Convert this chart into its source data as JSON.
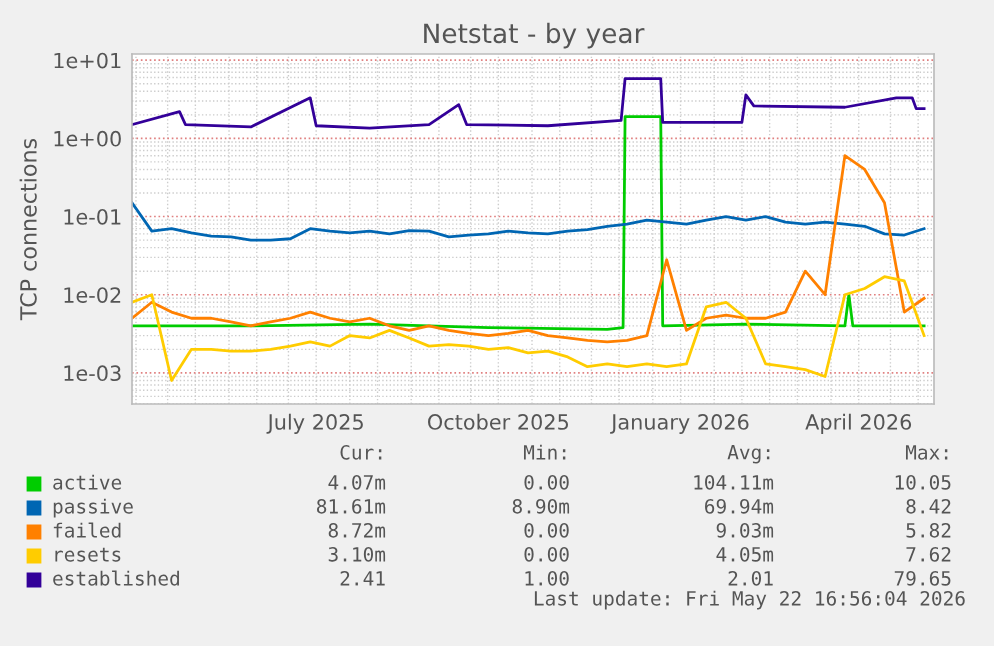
{
  "chart_data": {
    "type": "line",
    "title": "Netstat - by year",
    "ylabel": "TCP connections",
    "x": [
      "2025-04-13",
      "2025-04-23",
      "2025-05-03",
      "2025-05-13",
      "2025-05-23",
      "2025-06-02",
      "2025-06-12",
      "2025-06-22",
      "2025-07-02",
      "2025-07-12",
      "2025-07-22",
      "2025-08-01",
      "2025-08-11",
      "2025-08-21",
      "2025-08-31",
      "2025-09-10",
      "2025-09-20",
      "2025-09-30",
      "2025-10-10",
      "2025-10-20",
      "2025-10-30",
      "2025-11-09",
      "2025-11-19",
      "2025-11-29",
      "2025-12-09",
      "2025-12-19",
      "2025-12-29",
      "2026-01-08",
      "2026-01-18",
      "2026-01-28",
      "2026-02-07",
      "2026-02-17",
      "2026-02-27",
      "2026-03-09",
      "2026-03-19",
      "2026-03-29",
      "2026-04-08",
      "2026-04-18",
      "2026-04-28",
      "2026-05-08",
      "2026-05-18"
    ],
    "series": [
      {
        "name": "active",
        "color": "#00cc00",
        "x": [
          "2025-04-13",
          "2025-06-12",
          "2025-08-11",
          "2025-10-10",
          "2025-12-09",
          "2025-12-17",
          "2025-12-18",
          "2026-01-05",
          "2026-01-06",
          "2026-02-17",
          "2026-04-08",
          "2026-04-10",
          "2026-04-12",
          "2026-05-18"
        ],
        "values": [
          0.004,
          0.004,
          0.0042,
          0.0038,
          0.0036,
          0.0038,
          1.9,
          1.9,
          0.004,
          0.0042,
          0.004,
          0.01,
          0.004,
          0.004
        ]
      },
      {
        "name": "passive",
        "color": "#0066b3",
        "values": [
          0.15,
          0.065,
          0.07,
          0.062,
          0.056,
          0.055,
          0.05,
          0.05,
          0.052,
          0.07,
          0.065,
          0.062,
          0.065,
          0.06,
          0.066,
          0.065,
          0.055,
          0.058,
          0.06,
          0.065,
          0.062,
          0.06,
          0.065,
          0.068,
          0.075,
          0.08,
          0.09,
          0.085,
          0.08,
          0.09,
          0.1,
          0.09,
          0.1,
          0.085,
          0.08,
          0.085,
          0.08,
          0.075,
          0.06,
          0.058,
          0.07
        ]
      },
      {
        "name": "failed",
        "color": "#ff8000",
        "values": [
          0.005,
          0.008,
          0.006,
          0.005,
          0.005,
          0.0045,
          0.004,
          0.0045,
          0.005,
          0.006,
          0.005,
          0.0045,
          0.005,
          0.004,
          0.0035,
          0.004,
          0.0035,
          0.0032,
          0.003,
          0.0032,
          0.0035,
          0.003,
          0.0028,
          0.0026,
          0.0025,
          0.0026,
          0.003,
          0.028,
          0.0035,
          0.005,
          0.0055,
          0.005,
          0.005,
          0.006,
          0.02,
          0.01,
          0.6,
          0.4,
          0.15,
          0.006,
          0.009
        ]
      },
      {
        "name": "resets",
        "color": "#ffcc00",
        "values": [
          0.008,
          0.01,
          0.0008,
          0.002,
          0.002,
          0.0019,
          0.0019,
          0.002,
          0.0022,
          0.0025,
          0.0022,
          0.003,
          0.0028,
          0.0035,
          0.0028,
          0.0022,
          0.0023,
          0.0022,
          0.002,
          0.0021,
          0.0018,
          0.0019,
          0.0016,
          0.0012,
          0.0013,
          0.0012,
          0.0013,
          0.0012,
          0.0013,
          0.007,
          0.008,
          0.005,
          0.0013,
          0.0012,
          0.0011,
          0.0009,
          0.01,
          0.012,
          0.017,
          0.015,
          0.003
        ]
      },
      {
        "name": "established",
        "color": "#330099",
        "x": [
          "2025-04-13",
          "2025-05-07",
          "2025-05-10",
          "2025-06-12",
          "2025-07-12",
          "2025-07-15",
          "2025-08-11",
          "2025-09-10",
          "2025-09-25",
          "2025-09-29",
          "2025-11-09",
          "2025-12-16",
          "2025-12-18",
          "2026-01-05",
          "2026-01-06",
          "2026-02-15",
          "2026-02-17",
          "2026-02-21",
          "2026-04-08",
          "2026-05-04",
          "2026-05-12",
          "2026-05-14",
          "2026-05-18"
        ],
        "values": [
          1.5,
          2.2,
          1.5,
          1.4,
          3.3,
          1.45,
          1.35,
          1.5,
          2.7,
          1.5,
          1.45,
          1.7,
          5.8,
          5.8,
          1.6,
          1.6,
          3.6,
          2.6,
          2.5,
          3.3,
          3.3,
          2.4,
          2.4
        ]
      }
    ],
    "log": "y",
    "ylim": [
      0.0004,
      12
    ],
    "yticks": [
      {
        "value": 0.001,
        "label": "1e-03"
      },
      {
        "value": 0.01,
        "label": "1e-02"
      },
      {
        "value": 0.1,
        "label": "1e-01"
      },
      {
        "value": 1,
        "label": "1e+00"
      },
      {
        "value": 10,
        "label": "1e+01"
      }
    ],
    "xlim": [
      "2025-04-13",
      "2026-05-23"
    ],
    "xticks": [
      {
        "value": "2025-07-15",
        "label": "July 2025"
      },
      {
        "value": "2025-10-15",
        "label": "October 2025"
      },
      {
        "value": "2026-01-15",
        "label": "January 2026"
      },
      {
        "value": "2026-04-15",
        "label": "April 2026"
      }
    ],
    "grid": true,
    "legend": "bottom",
    "annotations": [
      "Cur:",
      "Min:",
      "Avg:",
      "Max:",
      "4.07m",
      "0.00",
      "104.11m",
      "10.05",
      "81.61m",
      "8.90m",
      "69.94m",
      "8.42",
      "8.72m",
      "0.00",
      "9.03m",
      "5.82",
      "3.10m",
      "0.00",
      "4.05m",
      "7.62",
      "2.41",
      "1.00",
      "2.01",
      "79.65",
      "Last update: Fri May 22 16:56:04 2026"
    ]
  }
}
